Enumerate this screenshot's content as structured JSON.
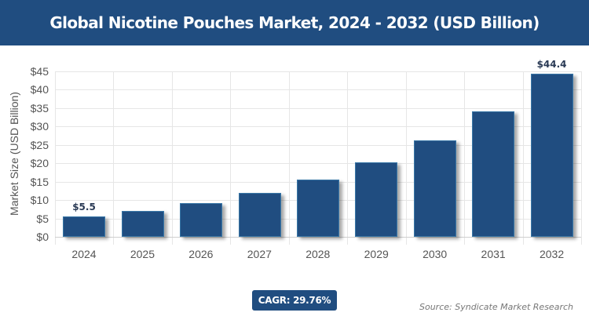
{
  "header": {
    "title": "Global Nicotine Pouches Market, 2024 - 2032 (USD Billion)"
  },
  "chart_data": {
    "type": "bar",
    "title": "Global Nicotine Pouches Market, 2024 - 2032 (USD Billion)",
    "xlabel": "",
    "ylabel": "Market Size (USD Billion)",
    "categories": [
      "2024",
      "2025",
      "2026",
      "2027",
      "2028",
      "2029",
      "2030",
      "2031",
      "2032"
    ],
    "values": [
      5.5,
      7.1,
      9.2,
      12.0,
      15.5,
      20.2,
      26.2,
      34.1,
      44.4
    ],
    "data_labels": {
      "0": "$5.5",
      "8": "$44.4"
    },
    "ylim": [
      0,
      45
    ],
    "yticks": [
      "$0",
      "$5",
      "$10",
      "$15",
      "$20",
      "$25",
      "$30",
      "$35",
      "$40",
      "$45"
    ],
    "grid": true,
    "legend": null,
    "bar_color": "#204d80"
  },
  "footer": {
    "cagr": "CAGR: 29.76%",
    "source": "Source: Syndicate Market Research"
  },
  "colors": {
    "brand": "#204d80"
  }
}
